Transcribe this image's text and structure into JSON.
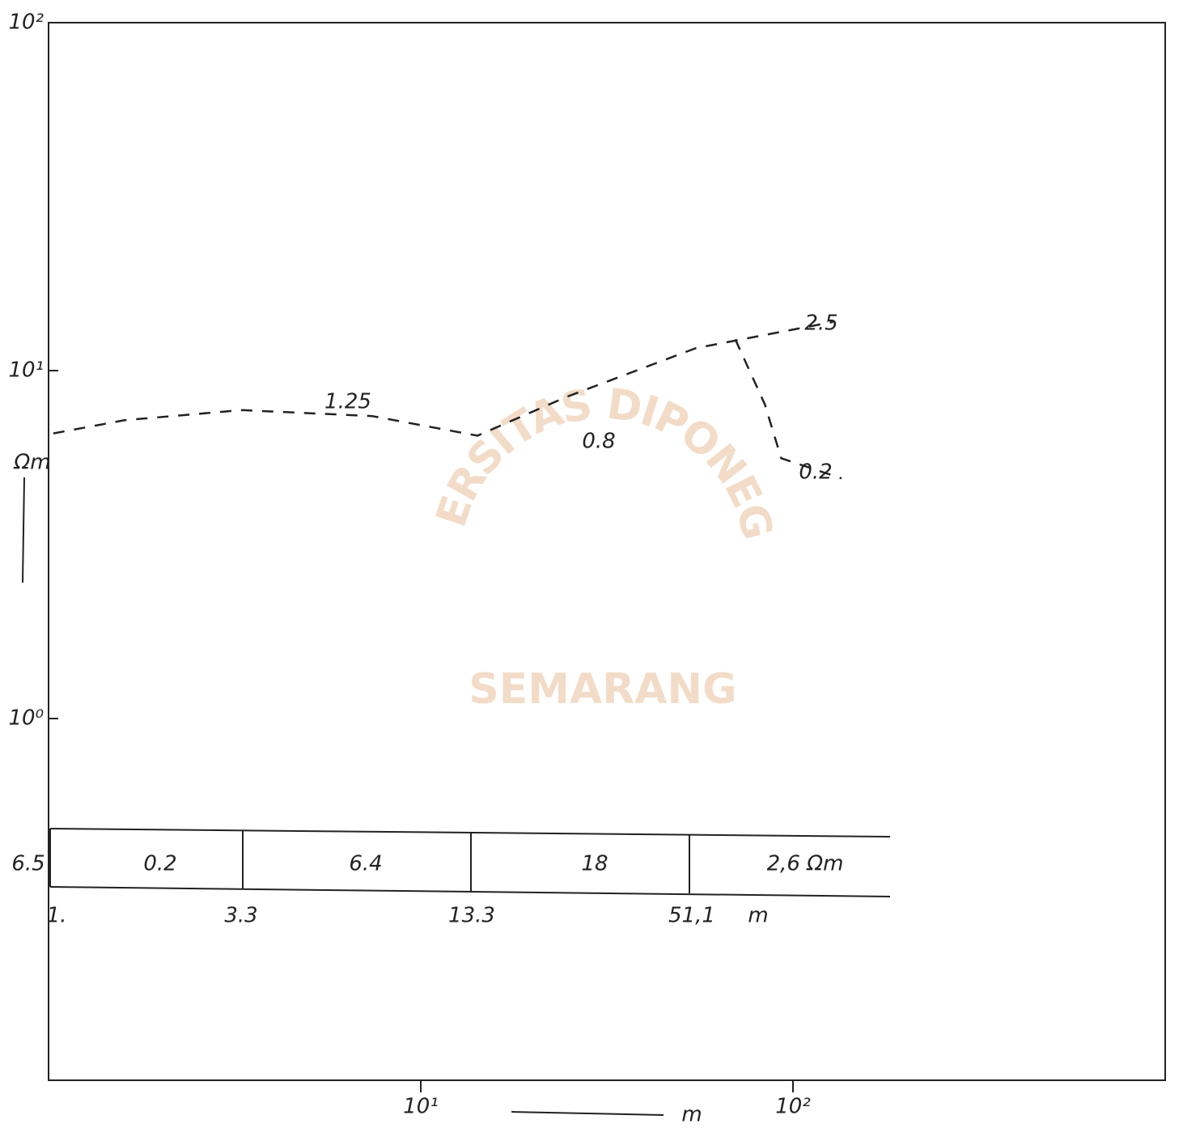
{
  "chart_data": {
    "type": "line",
    "xscale": "log",
    "yscale": "log",
    "xlim": [
      1,
      1000
    ],
    "ylim": [
      0.1,
      100
    ],
    "xticks": [
      {
        "value": 10,
        "label": "10¹"
      },
      {
        "value": 100,
        "label": "10²"
      }
    ],
    "yticks": [
      {
        "value": 100,
        "label": "10²"
      },
      {
        "value": 10,
        "label": "10¹"
      },
      {
        "value": 1,
        "label": "10⁰"
      }
    ],
    "x_label": "m",
    "y_label": "Ωm",
    "series": [
      {
        "color": "#222222",
        "x": [
          1.03,
          1.6,
          3.3,
          7.4,
          14.2,
          24.6,
          54.8,
          128
        ],
        "values": [
          6.6,
          7.2,
          7.7,
          7.4,
          6.5,
          8.4,
          11.6,
          13.8
        ]
      },
      {
        "color": "#222222",
        "x": [
          70,
          84,
          93,
          135
        ],
        "values": [
          12.3,
          8,
          5.6,
          4.9
        ]
      }
    ],
    "annotations": [
      "1.25",
      "0.8",
      "2.5",
      "0.2"
    ],
    "layer_table": {
      "resistivities": [
        "6.5",
        "0.2",
        "6.4",
        "18",
        "2,6 Ωm"
      ],
      "depths": [
        "1.",
        "3.3",
        "13.3",
        "51,1",
        "m"
      ]
    },
    "watermark": {
      "arc": "UNIVERSITAS DIPONEGORO",
      "bottom": "SEMARANG"
    }
  }
}
